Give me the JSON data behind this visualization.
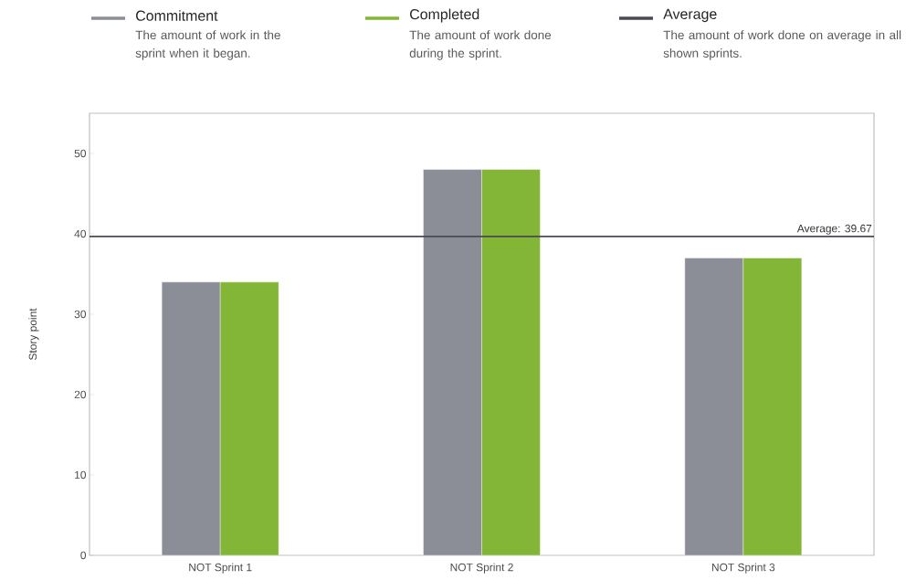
{
  "chart_data": {
    "type": "bar",
    "ylabel": "Story point",
    "categories": [
      "NOT Sprint 1",
      "NOT Sprint 2",
      "NOT Sprint 3"
    ],
    "series": [
      {
        "name": "Commitment",
        "color": "#8b8e97",
        "values": [
          34,
          48,
          37
        ]
      },
      {
        "name": "Completed",
        "color": "#83b536",
        "values": [
          34,
          48,
          37
        ]
      }
    ],
    "ylim": [
      0,
      55
    ],
    "yticks": [
      0,
      10,
      20,
      30,
      40,
      50
    ],
    "ref_lines": [
      {
        "axis": "y",
        "value": 39.67,
        "label": "Average: 39.67",
        "color": "#4a4a52"
      }
    ],
    "annotations": [
      "The amount of work in the sprint when it began.",
      "The amount of work done during the sprint.",
      "Average",
      "The amount of work done on average in all shown sprints."
    ],
    "legend": "top",
    "grid": false
  }
}
